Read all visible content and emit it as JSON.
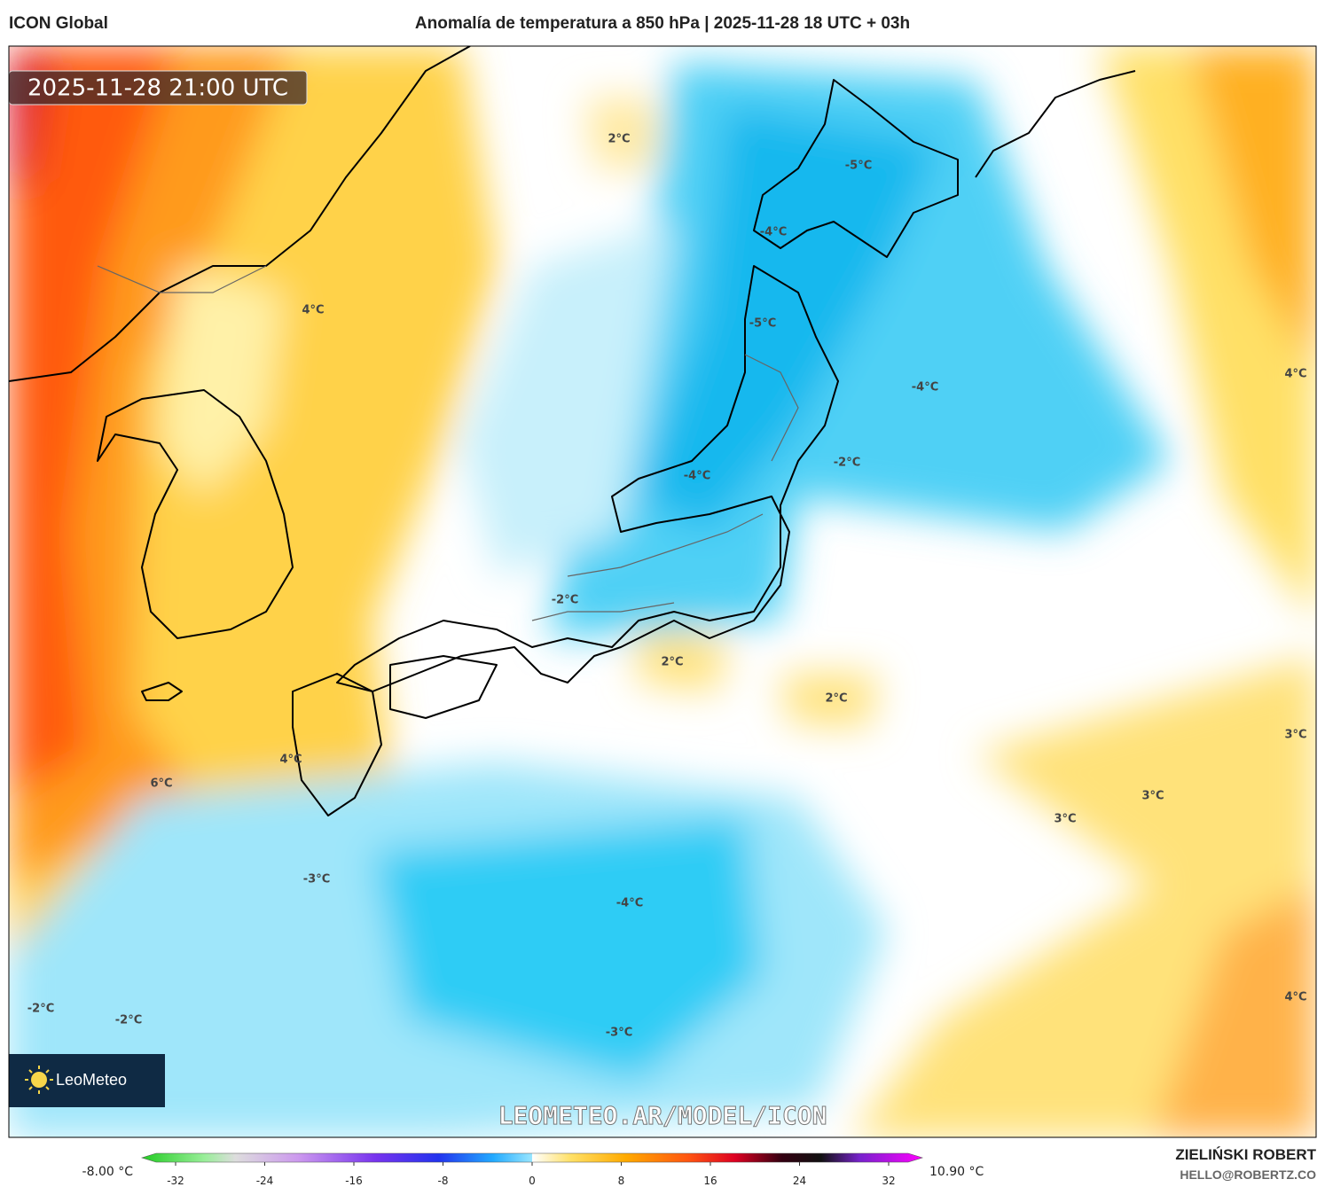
{
  "header": {
    "model": "ICON Global",
    "title": "Anomalía de temperatura a 850 hPa | 2025-11-28 18 UTC + 03h"
  },
  "map": {
    "valid_time": "2025-11-28 21:00 UTC",
    "logo": "LeoMeteo",
    "watermark": "LEOMETEO.AR/MODEL/ICON",
    "contour_labels": [
      "2°C",
      "-5°C",
      "-4°C",
      "4°C",
      "-5°C",
      "-4°C",
      "4°C",
      "-2°C",
      "-4°C",
      "-2°C",
      "2°C",
      "2°C",
      "3°C",
      "4°C",
      "6°C",
      "3°C",
      "3°C",
      "-3°C",
      "-4°C",
      "-2°C",
      "-2°C",
      "-3°C",
      "4°C"
    ]
  },
  "colorbar": {
    "min_label": "-8.00 °C",
    "max_label": "10.90 °C",
    "ticks": [
      -32,
      -24,
      -16,
      -8,
      0,
      8,
      16,
      24,
      32
    ]
  },
  "footer": {
    "author": "ZIELIŃSKI ROBERT",
    "email": "HELLO@ROBERTZ.CO"
  }
}
